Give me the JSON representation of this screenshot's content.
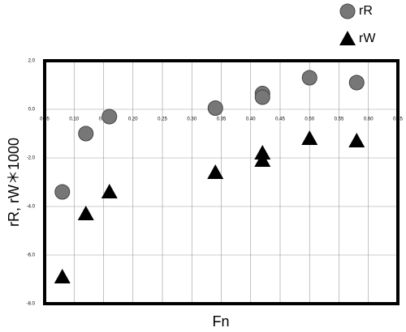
{
  "chart_data": {
    "type": "scatter",
    "x_label": "Fn",
    "y_label": "rR, rW＊1000",
    "xlim": [
      0.05,
      0.65
    ],
    "xticks": [
      0.05,
      {
        "value": 0.1,
        "label": "0.10"
      },
      0.15,
      {
        "value": 0.2,
        "label": "0.20"
      },
      0.25,
      {
        "value": 0.3,
        "label": "0.30"
      },
      0.35,
      {
        "value": 0.4,
        "label": "0.40"
      },
      0.45,
      {
        "value": 0.5,
        "label": "0.50"
      },
      0.55,
      {
        "value": 0.6,
        "label": "0.60"
      },
      0.65
    ],
    "ylim": [
      -8,
      2
    ],
    "yticks": [
      {
        "value": 2,
        "label": "2.0"
      },
      {
        "value": 0,
        "label": "0.0"
      },
      {
        "value": -2,
        "label": "-2.0"
      },
      {
        "value": -4,
        "label": "-4.0"
      },
      {
        "value": -6,
        "label": "-6.0"
      },
      {
        "value": -8,
        "label": "-8.0"
      }
    ],
    "grid": true,
    "legend": "top-right",
    "series": [
      {
        "name": "rR",
        "marker": "circle",
        "color": "#777777",
        "x": [
          0.08,
          0.12,
          0.16,
          0.34,
          0.42,
          0.42,
          0.5,
          0.58
        ],
        "values": [
          -3.4,
          -1.0,
          -0.3,
          0.05,
          0.65,
          0.5,
          1.3,
          1.1
        ]
      },
      {
        "name": "rW",
        "marker": "triangle",
        "color": "#000000",
        "x": [
          0.08,
          0.12,
          0.16,
          0.34,
          0.42,
          0.42,
          0.5,
          0.58
        ],
        "values": [
          -6.9,
          -4.3,
          -3.4,
          -2.6,
          -2.1,
          -1.8,
          -1.2,
          -1.3
        ]
      }
    ]
  }
}
